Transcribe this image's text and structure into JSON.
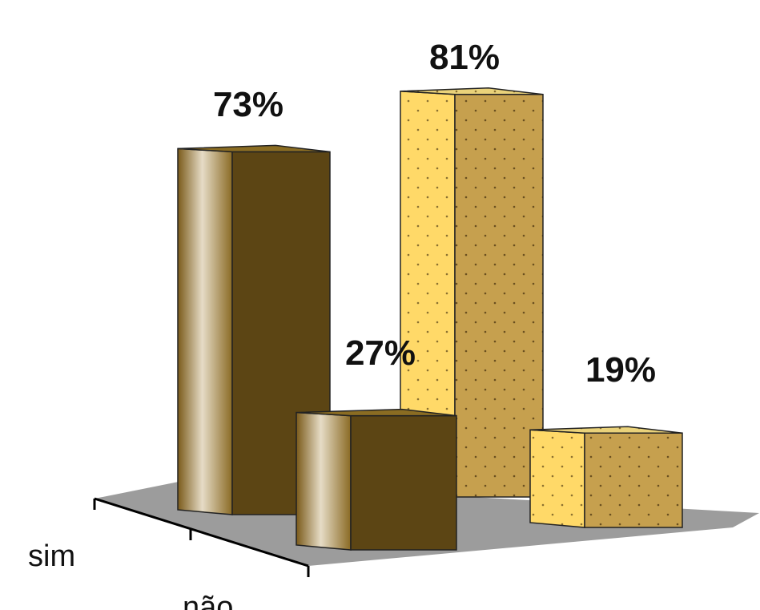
{
  "chart_data": {
    "type": "bar",
    "categories": [
      "sim",
      "não"
    ],
    "series": [
      {
        "values": [
          73,
          27
        ],
        "colors": {
          "front": "#9a7a2a",
          "side": "#5c4514",
          "top": "#8a6c22"
        },
        "pattern": "solid"
      },
      {
        "values": [
          81,
          19
        ],
        "colors": {
          "front": "#ffd968",
          "side": "#c6a04e",
          "top": "#ead27a"
        },
        "pattern": "dotted"
      }
    ],
    "data_labels": [
      "73%",
      "27%",
      "81%",
      "19%"
    ],
    "unit": "%",
    "grid": false,
    "legend": "none",
    "floor_color": "#9c9c9c"
  }
}
